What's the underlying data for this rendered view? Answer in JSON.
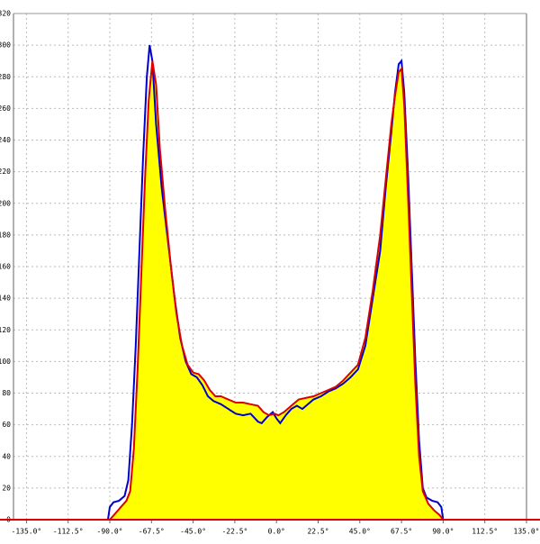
{
  "chart_data": {
    "type": "area-line",
    "xlim": [
      -142,
      135
    ],
    "ylim": [
      0,
      320
    ],
    "xticks": [
      {
        "value": -135,
        "label": "-135.0°"
      },
      {
        "value": -112.5,
        "label": "-112.5°"
      },
      {
        "value": -90,
        "label": "-90.0°"
      },
      {
        "value": -67.5,
        "label": "-67.5°"
      },
      {
        "value": -45,
        "label": "-45.0°"
      },
      {
        "value": -22.5,
        "label": "-22.5°"
      },
      {
        "value": 0,
        "label": "0.0°"
      },
      {
        "value": 22.5,
        "label": "22.5°"
      },
      {
        "value": 45,
        "label": "45.0°"
      },
      {
        "value": 67.5,
        "label": "67.5°"
      },
      {
        "value": 90,
        "label": "90.0°"
      },
      {
        "value": 112.5,
        "label": "112.5°"
      },
      {
        "value": 135,
        "label": "135.0°"
      }
    ],
    "yticks": [
      0,
      20,
      40,
      60,
      80,
      100,
      120,
      140,
      160,
      180,
      200,
      220,
      240,
      260,
      280,
      300,
      320
    ],
    "grid": true,
    "series": [
      {
        "color": "#dd0000",
        "fill": "#ffff00",
        "x": [
          -90,
          -87,
          -84,
          -81,
          -79,
          -77,
          -75,
          -73,
          -71,
          -69,
          -67,
          -65,
          -63,
          -60,
          -57,
          -54,
          -51,
          -48,
          -45,
          -42,
          -39,
          -36,
          -33,
          -30,
          -26,
          -22,
          -18,
          -14,
          -10,
          -7,
          -4,
          -1,
          1,
          4,
          8,
          12,
          16,
          20,
          24,
          28,
          32,
          36,
          40,
          44,
          48,
          52,
          56,
          59,
          62,
          64,
          66,
          67.5,
          69,
          71,
          73,
          75,
          77,
          79,
          82,
          85,
          88,
          90
        ],
        "values": [
          0,
          4,
          8,
          12,
          18,
          45,
          95,
          155,
          215,
          265,
          290,
          275,
          235,
          195,
          160,
          130,
          110,
          98,
          93,
          92,
          88,
          82,
          78,
          78,
          76,
          74,
          74,
          73,
          72,
          68,
          66,
          67,
          66,
          68,
          72,
          76,
          77,
          78,
          80,
          82,
          84,
          88,
          93,
          98,
          115,
          145,
          180,
          215,
          250,
          268,
          283,
          285,
          262,
          205,
          145,
          85,
          40,
          18,
          10,
          6,
          3,
          0
        ]
      },
      {
        "color": "#0000cc",
        "x": [
          -91,
          -90,
          -88,
          -85,
          -82,
          -80,
          -78,
          -76,
          -74,
          -72,
          -70,
          -68.5,
          -67,
          -65,
          -62,
          -58,
          -55,
          -52,
          -49,
          -46,
          -43,
          -40,
          -37,
          -34,
          -30,
          -26,
          -22,
          -18,
          -14,
          -10,
          -8,
          -5,
          -2,
          0,
          2,
          5,
          8,
          11,
          14,
          17,
          20,
          24,
          28,
          32,
          36,
          40,
          44,
          48,
          52,
          56,
          59,
          62,
          64,
          66,
          67.5,
          69,
          71,
          73,
          75,
          77,
          79,
          81,
          84,
          87,
          89,
          90
        ],
        "values": [
          0,
          8,
          11,
          12,
          15,
          25,
          60,
          110,
          170,
          230,
          280,
          300,
          290,
          250,
          210,
          170,
          140,
          115,
          100,
          92,
          90,
          85,
          78,
          75,
          73,
          70,
          67,
          66,
          67,
          62,
          61,
          65,
          68,
          64,
          61,
          66,
          70,
          72,
          70,
          73,
          76,
          78,
          81,
          83,
          86,
          90,
          95,
          110,
          140,
          170,
          210,
          245,
          270,
          288,
          290,
          270,
          220,
          160,
          100,
          50,
          20,
          14,
          12,
          11,
          8,
          0
        ]
      }
    ]
  }
}
